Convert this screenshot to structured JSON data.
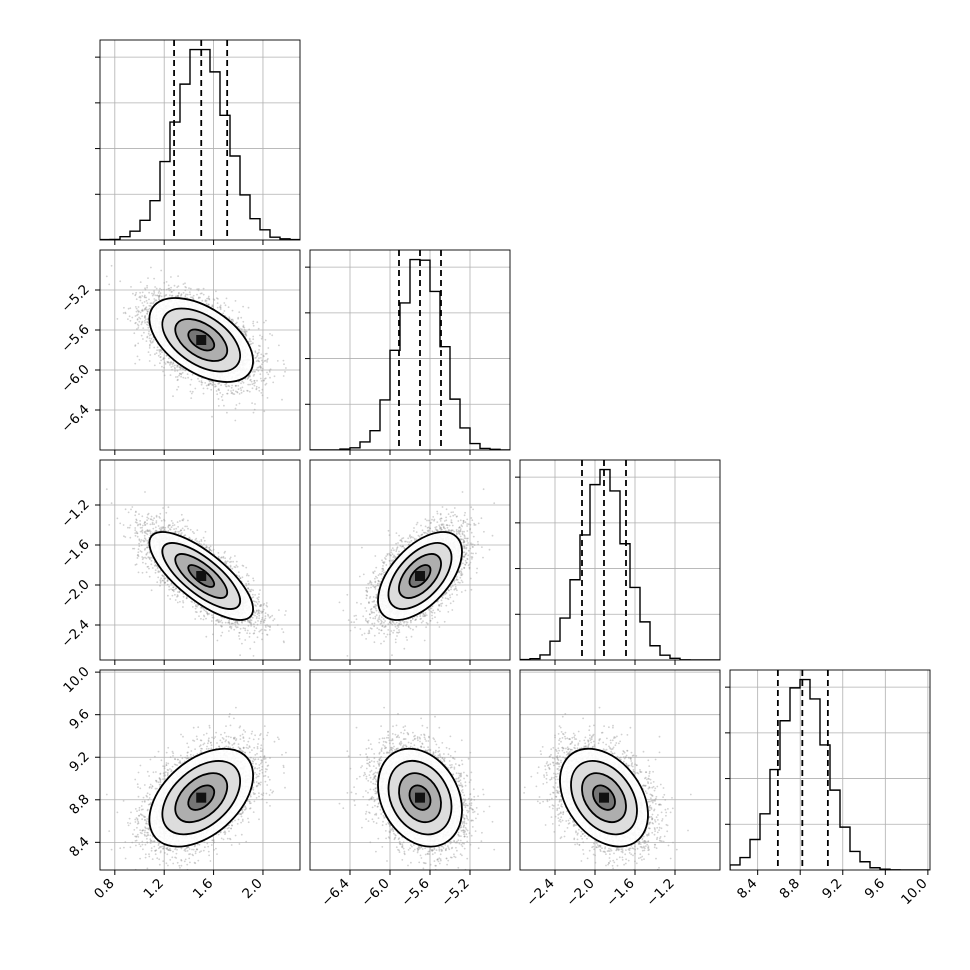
{
  "chart_data": {
    "type": "corner",
    "parameters": [
      {
        "mean": 1.5,
        "sd": 0.21,
        "range": [
          0.68,
          2.3
        ],
        "quantiles": [
          1.28,
          1.5,
          1.71
        ],
        "ticks": [
          0.8,
          1.2,
          1.6,
          2.0
        ],
        "tick_labels": [
          "0.8",
          "1.2",
          "1.6",
          "2.0"
        ]
      },
      {
        "mean": -5.7,
        "sd": 0.21,
        "range": [
          -6.8,
          -4.8
        ],
        "quantiles": [
          -5.91,
          -5.7,
          -5.49
        ],
        "ticks": [
          -6.4,
          -6.0,
          -5.6,
          -5.2
        ],
        "tick_labels": [
          "−6.4",
          "−6.0",
          "−5.6",
          "−5.2"
        ]
      },
      {
        "mean": -1.91,
        "sd": 0.22,
        "range": [
          -2.75,
          -0.75
        ],
        "quantiles": [
          -2.13,
          -1.91,
          -1.69
        ],
        "ticks": [
          -2.4,
          -2.0,
          -1.6,
          -1.2
        ],
        "tick_labels": [
          "−2.4",
          "−2.0",
          "−1.6",
          "−1.2"
        ]
      },
      {
        "mean": 8.82,
        "sd": 0.23,
        "range": [
          8.14,
          10.02
        ],
        "quantiles": [
          8.59,
          8.82,
          9.06
        ],
        "ticks": [
          8.4,
          8.8,
          9.2,
          9.6,
          10.0
        ],
        "tick_labels": [
          "8.4",
          "8.8",
          "9.2",
          "9.6",
          "10.0"
        ]
      }
    ],
    "correlations": [
      [
        1.0,
        -0.5,
        -0.75,
        0.45
      ],
      [
        -0.5,
        1.0,
        0.55,
        -0.25
      ],
      [
        -0.75,
        0.55,
        1.0,
        -0.35
      ],
      [
        0.45,
        -0.25,
        -0.35,
        1.0
      ]
    ],
    "histogram_bins": 20,
    "density_levels": [
      0.5,
      1.0,
      1.5,
      2.0
    ],
    "xlabel": "",
    "ylabel": "",
    "title": "",
    "grid": true,
    "colors": {
      "points": "#9a9a9a",
      "lines": "#000000",
      "grid": "#b0b0b0"
    }
  }
}
